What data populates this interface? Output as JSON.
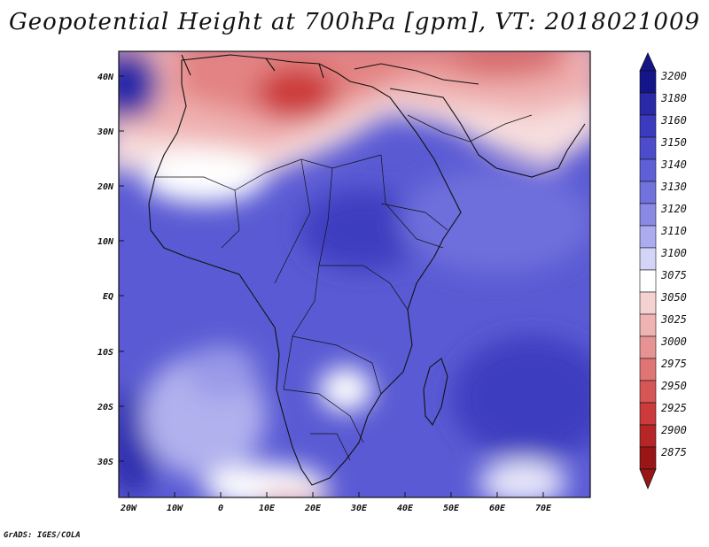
{
  "title": "Geopotential Height at 700hPa [gpm], VT: 2018021009",
  "credit": "GrADS: IGES/COLA",
  "axes": {
    "lat_labels": [
      "40N",
      "30N",
      "20N",
      "10N",
      "EQ",
      "10S",
      "20S",
      "30S"
    ],
    "lon_labels": [
      "20W",
      "10W",
      "0",
      "10E",
      "20E",
      "30E",
      "40E",
      "50E",
      "60E",
      "70E"
    ]
  },
  "colorbar": {
    "levels": [
      "3200",
      "3180",
      "3160",
      "3150",
      "3140",
      "3130",
      "3120",
      "3110",
      "3100",
      "3075",
      "3050",
      "3025",
      "3000",
      "2975",
      "2950",
      "2925",
      "2900",
      "2875"
    ],
    "colors": [
      "#15158a",
      "#2a2aa8",
      "#3b3bbf",
      "#4d4dcc",
      "#5f5fd6",
      "#7272dd",
      "#8a8ae4",
      "#ababef",
      "#d4d4f7",
      "#ffffff",
      "#f5d2d2",
      "#efb3b3",
      "#e69393",
      "#df7575",
      "#d65656",
      "#cc3b3b",
      "#b72626",
      "#9a1616"
    ]
  }
}
